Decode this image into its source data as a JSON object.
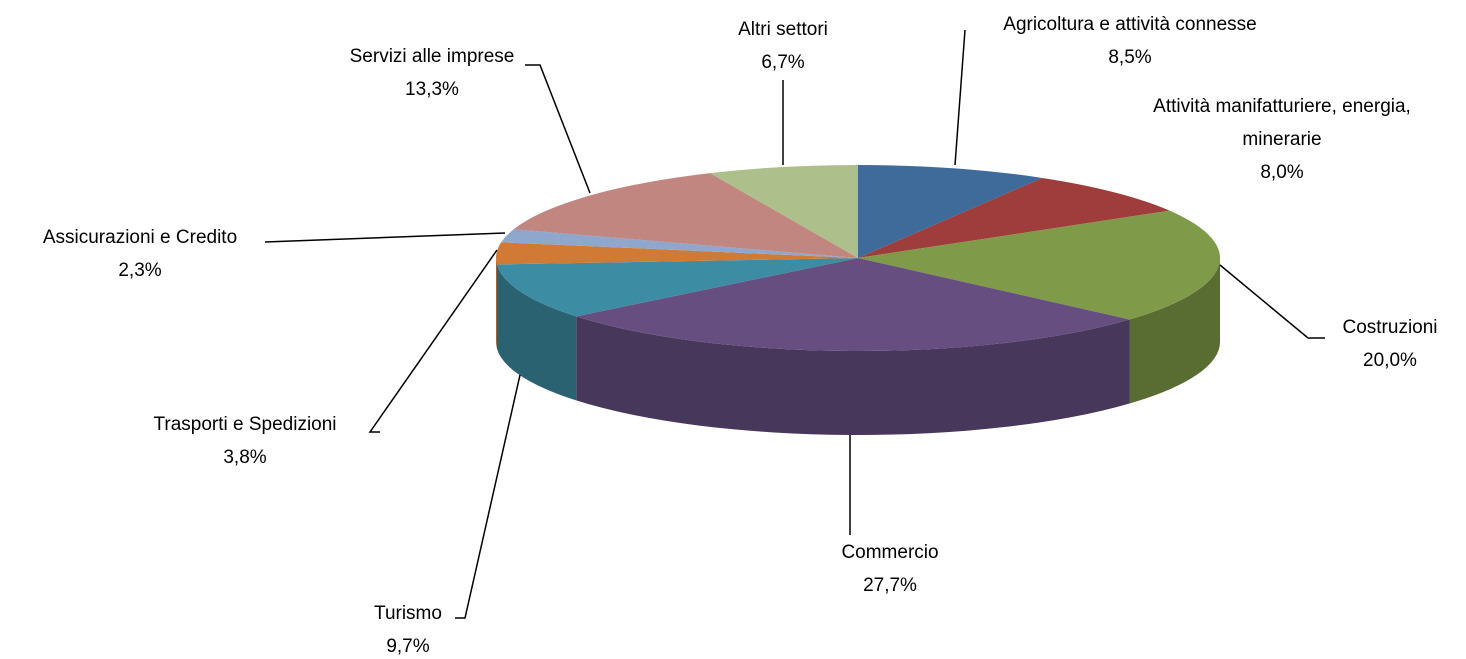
{
  "chart_data": {
    "type": "pie",
    "categories": [
      "Agricoltura e attività connesse",
      "Attività manifatturiere, energia, minerarie",
      "Costruzioni",
      "Commercio",
      "Turismo",
      "Trasporti e Spedizioni",
      "Assicurazioni e Credito",
      "Servizi alle imprese",
      "Altri settori"
    ],
    "values": [
      8.5,
      8.0,
      20.0,
      27.7,
      9.7,
      3.8,
      2.3,
      13.3,
      6.7
    ],
    "value_labels": [
      "8,5%",
      "8,0%",
      "20,0%",
      "27,7%",
      "9,7%",
      "3,8%",
      "2,3%",
      "13,3%",
      "6,7%"
    ],
    "colors": [
      "#3f6b9b",
      "#9e3d3b",
      "#7f9a48",
      "#664f80",
      "#3c8ca3",
      "#d07a35",
      "#8fa6cd",
      "#c0867f",
      "#adc08c"
    ]
  }
}
